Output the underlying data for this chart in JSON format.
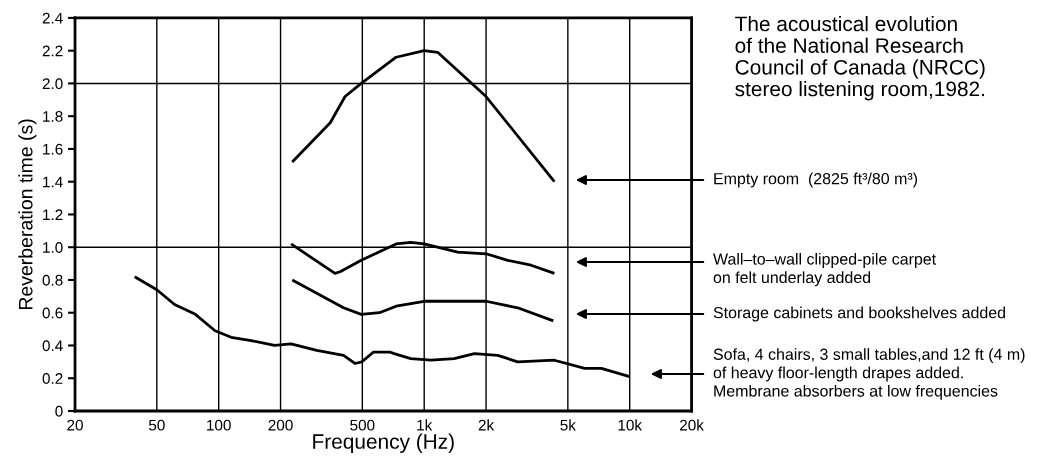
{
  "chart_data": {
    "type": "line",
    "title": "The acoustical evolution\nof the National Research\nCouncil of Canada (NRCC)\nstereo listening room,1982.",
    "xlabel": "Frequency (Hz)",
    "ylabel": "Reverberation time (s)",
    "log": "x",
    "xlim": [
      20,
      20000
    ],
    "xticks": [
      20,
      50,
      100,
      200,
      500,
      {
        "value": 1000,
        "label": "1k"
      },
      {
        "value": 2000,
        "label": "2k"
      },
      {
        "value": 5000,
        "label": "5k"
      },
      {
        "value": 10000,
        "label": "10k"
      },
      {
        "value": 20000,
        "label": "20k"
      }
    ],
    "ylim": [
      0,
      2.4
    ],
    "yticks": [
      0,
      0.2,
      0.4,
      0.6,
      0.8,
      {
        "value": 1.0,
        "label": "1.0"
      },
      1.2,
      1.4,
      1.6,
      1.8,
      {
        "value": 2.0,
        "label": "2.0"
      },
      2.2,
      2.4
    ],
    "grid": "x",
    "legend": false,
    "marker": "none",
    "line_style": "solid",
    "ref_lines": [
      {
        "axis": "y",
        "value": 1.0,
        "color": "#000000"
      },
      {
        "axis": "y",
        "value": 2.0,
        "color": "#000000"
      }
    ],
    "series": [
      {
        "color": "#000000",
        "x": [
          228,
          349,
          412,
          494,
          730,
          1000,
          1162,
          2000,
          4300
        ],
        "values": [
          1.52,
          1.76,
          1.92,
          2.0,
          2.16,
          2.2,
          2.19,
          1.92,
          1.4
        ]
      },
      {
        "color": "#000000",
        "x": [
          225,
          368,
          390,
          494,
          730,
          861,
          1000,
          1454,
          2000,
          2550,
          3310,
          4300
        ],
        "values": [
          1.02,
          0.84,
          0.85,
          0.92,
          1.02,
          1.03,
          1.02,
          0.97,
          0.96,
          0.92,
          0.89,
          0.84
        ]
      },
      {
        "color": "#000000",
        "x": [
          228,
          405,
          494,
          606,
          730,
          1000,
          2000,
          2850,
          4250
        ],
        "values": [
          0.8,
          0.63,
          0.59,
          0.6,
          0.64,
          0.67,
          0.67,
          0.63,
          0.55
        ]
      },
      {
        "color": "#000000",
        "x": [
          39,
          50,
          61,
          77,
          96,
          115,
          144,
          187,
          225,
          300,
          405,
          460,
          497,
          567,
          680,
          714,
          861,
          1078,
          1400,
          1755,
          2280,
          2850,
          4300,
          6040,
          7280,
          10000
        ],
        "values": [
          0.82,
          0.74,
          0.65,
          0.59,
          0.49,
          0.45,
          0.43,
          0.4,
          0.41,
          0.37,
          0.34,
          0.29,
          0.3,
          0.36,
          0.36,
          0.35,
          0.32,
          0.31,
          0.32,
          0.35,
          0.34,
          0.3,
          0.31,
          0.26,
          0.26,
          0.21
        ]
      }
    ],
    "annotations": [
      "Empty room  (2825 ft³/80 m³)",
      "Wall–to–wall clipped-pile carpet\non felt underlay added",
      "Storage cabinets and bookshelves added",
      "Sofa, 4 chairs, 3 small tables,and 12 ft (4 m)\nof heavy floor-length drapes added.\nMembrane absorbers at low frequencies"
    ]
  }
}
